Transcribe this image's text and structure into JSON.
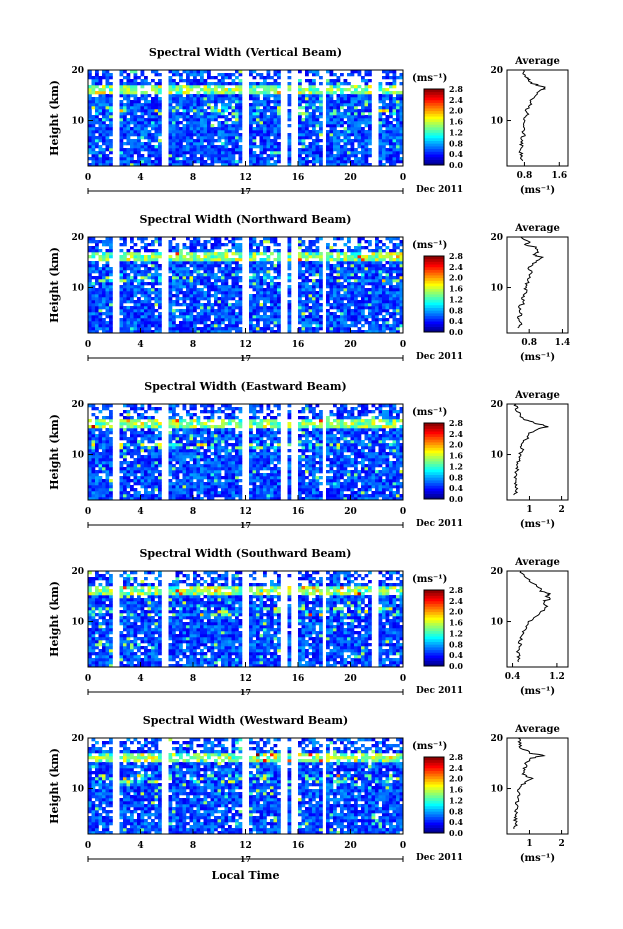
{
  "chart_data": [
    {
      "type": "heatmap",
      "title": "Spectral Width (Vertical Beam)",
      "ylabel": "Height (km)",
      "yticks": [
        "20",
        "10"
      ],
      "xticks": [
        "0",
        "4",
        "8",
        "12",
        "16",
        "20",
        "0"
      ],
      "day_label": "17",
      "date_label": "Dec 2011",
      "ylim": [
        1,
        20
      ],
      "xlim": [
        0,
        24
      ],
      "colorbar": {
        "unit": "(ms⁻¹)",
        "ticks": [
          "2.8",
          "2.4",
          "2.0",
          "1.6",
          "1.2",
          "0.8",
          "0.4",
          "0.0"
        ],
        "range": [
          0,
          2.8
        ]
      },
      "data_gaps_hours": [
        [
          2.0,
          2.5
        ],
        [
          5.6,
          6.2
        ],
        [
          11.8,
          12.3
        ],
        [
          14.7,
          15.1
        ],
        [
          15.4,
          16.0
        ],
        [
          17.9,
          18.2
        ],
        [
          21.6,
          22.0
        ]
      ],
      "average": {
        "title": "Average",
        "xticks": [
          "0.8",
          "1.6"
        ],
        "xlim": [
          0.4,
          1.8
        ],
        "unit": "(ms⁻¹)",
        "yticks": [
          "20",
          "10"
        ],
        "profile": [
          [
            2,
            0.72
          ],
          [
            3,
            0.75
          ],
          [
            4,
            0.7
          ],
          [
            5,
            0.74
          ],
          [
            6,
            0.72
          ],
          [
            7,
            0.78
          ],
          [
            8,
            0.76
          ],
          [
            9,
            0.82
          ],
          [
            10,
            0.78
          ],
          [
            11,
            0.86
          ],
          [
            12,
            0.84
          ],
          [
            13,
            0.92
          ],
          [
            14,
            0.96
          ],
          [
            15,
            1.05
          ],
          [
            16,
            1.2
          ],
          [
            16.5,
            1.28
          ],
          [
            17,
            1.1
          ],
          [
            17.5,
            0.95
          ],
          [
            18,
            0.9
          ],
          [
            18.5,
            0.85
          ],
          [
            19,
            0.8
          ],
          [
            20,
            0.78
          ]
        ]
      }
    },
    {
      "type": "heatmap",
      "title": "Spectral Width (Northward Beam)",
      "ylabel": "Height (km)",
      "yticks": [
        "20",
        "10"
      ],
      "xticks": [
        "0",
        "4",
        "8",
        "12",
        "16",
        "20",
        "0"
      ],
      "day_label": "17",
      "date_label": "Dec 2011",
      "ylim": [
        1,
        20
      ],
      "xlim": [
        0,
        24
      ],
      "colorbar": {
        "unit": "(ms⁻¹)",
        "ticks": [
          "2.8",
          "2.4",
          "2.0",
          "1.6",
          "1.2",
          "0.8",
          "0.4",
          "0.0"
        ],
        "range": [
          0,
          2.8
        ]
      },
      "data_gaps_hours": [
        [
          2.0,
          2.5
        ],
        [
          5.6,
          6.2
        ],
        [
          11.8,
          12.3
        ],
        [
          14.7,
          15.1
        ],
        [
          15.4,
          16.0
        ],
        [
          17.9,
          18.2
        ]
      ],
      "average": {
        "title": "Average",
        "xticks": [
          "0.8",
          "1.4"
        ],
        "xlim": [
          0.4,
          1.5
        ],
        "unit": "(ms⁻¹)",
        "yticks": [
          "20",
          "10"
        ],
        "profile": [
          [
            2,
            0.62
          ],
          [
            3,
            0.65
          ],
          [
            4,
            0.6
          ],
          [
            5,
            0.66
          ],
          [
            6,
            0.62
          ],
          [
            7,
            0.7
          ],
          [
            8,
            0.68
          ],
          [
            9,
            0.75
          ],
          [
            10,
            0.72
          ],
          [
            11,
            0.78
          ],
          [
            12,
            0.8
          ],
          [
            13,
            0.86
          ],
          [
            14,
            0.78
          ],
          [
            15,
            0.92
          ],
          [
            16,
            1.05
          ],
          [
            16.5,
            0.85
          ],
          [
            17,
            0.98
          ],
          [
            18,
            0.9
          ],
          [
            18.5,
            0.72
          ],
          [
            19,
            0.8
          ],
          [
            20,
            0.65
          ]
        ]
      }
    },
    {
      "type": "heatmap",
      "title": "Spectral Width (Eastward Beam)",
      "ylabel": "Height (km)",
      "yticks": [
        "20",
        "10"
      ],
      "xticks": [
        "0",
        "4",
        "8",
        "12",
        "16",
        "20",
        "0"
      ],
      "day_label": "17",
      "date_label": "Dec 2011",
      "ylim": [
        1,
        20
      ],
      "xlim": [
        0,
        24
      ],
      "colorbar": {
        "unit": "(ms⁻¹)",
        "ticks": [
          "2.8",
          "2.4",
          "2.0",
          "1.6",
          "1.2",
          "0.8",
          "0.4",
          "0.0"
        ],
        "range": [
          0,
          2.8
        ]
      },
      "data_gaps_hours": [
        [
          2.0,
          2.5
        ],
        [
          5.6,
          6.2
        ],
        [
          11.8,
          12.3
        ],
        [
          14.7,
          15.1
        ],
        [
          15.4,
          16.0
        ],
        [
          17.9,
          18.2
        ]
      ],
      "average": {
        "title": "Average",
        "xticks": [
          "1",
          "2"
        ],
        "xlim": [
          0.3,
          2.2
        ],
        "unit": "(ms⁻¹)",
        "yticks": [
          "20",
          "10"
        ],
        "profile": [
          [
            2,
            0.55
          ],
          [
            3,
            0.62
          ],
          [
            4,
            0.55
          ],
          [
            5,
            0.6
          ],
          [
            6,
            0.55
          ],
          [
            7,
            0.62
          ],
          [
            8,
            0.6
          ],
          [
            9,
            0.68
          ],
          [
            10,
            0.7
          ],
          [
            11,
            0.78
          ],
          [
            12,
            0.75
          ],
          [
            13,
            0.9
          ],
          [
            14,
            0.95
          ],
          [
            15,
            1.2
          ],
          [
            15.5,
            1.6
          ],
          [
            16,
            1.3
          ],
          [
            16.5,
            1.05
          ],
          [
            17,
            0.8
          ],
          [
            18,
            0.7
          ],
          [
            19,
            0.6
          ],
          [
            20,
            0.58
          ]
        ]
      }
    },
    {
      "type": "heatmap",
      "title": "Spectral Width (Southward Beam)",
      "ylabel": "Height (km)",
      "yticks": [
        "20",
        "10"
      ],
      "xticks": [
        "0",
        "4",
        "8",
        "12",
        "16",
        "20",
        "0"
      ],
      "day_label": "17",
      "date_label": "Dec 2011",
      "ylim": [
        1,
        20
      ],
      "xlim": [
        0,
        24
      ],
      "colorbar": {
        "unit": "(ms⁻¹)",
        "ticks": [
          "2.8",
          "2.4",
          "2.0",
          "1.6",
          "1.2",
          "0.8",
          "0.4",
          "0.0"
        ],
        "range": [
          0,
          2.8
        ]
      },
      "data_gaps_hours": [
        [
          2.0,
          2.5
        ],
        [
          5.6,
          6.2
        ],
        [
          11.8,
          12.3
        ],
        [
          14.7,
          15.1
        ],
        [
          15.4,
          16.0
        ],
        [
          17.9,
          18.2
        ],
        [
          21.6,
          22.0
        ]
      ],
      "average": {
        "title": "Average",
        "xticks": [
          "0.4",
          "1.2"
        ],
        "xlim": [
          0.3,
          1.4
        ],
        "unit": "(ms⁻¹)",
        "yticks": [
          "20",
          "10"
        ],
        "profile": [
          [
            2,
            0.48
          ],
          [
            3,
            0.52
          ],
          [
            4,
            0.5
          ],
          [
            5,
            0.55
          ],
          [
            6,
            0.52
          ],
          [
            7,
            0.58
          ],
          [
            8,
            0.6
          ],
          [
            9,
            0.66
          ],
          [
            10,
            0.7
          ],
          [
            11,
            0.8
          ],
          [
            12,
            0.92
          ],
          [
            13,
            1.02
          ],
          [
            14,
            0.95
          ],
          [
            14.5,
            1.1
          ],
          [
            15,
            1.0
          ],
          [
            15.5,
            1.08
          ],
          [
            16,
            0.92
          ],
          [
            17,
            0.85
          ],
          [
            18,
            0.7
          ],
          [
            19,
            0.62
          ],
          [
            20,
            0.55
          ]
        ]
      }
    },
    {
      "type": "heatmap",
      "title": "Spectral Width (Westward Beam)",
      "ylabel": "Height (km)",
      "yticks": [
        "20",
        "10"
      ],
      "xticks": [
        "0",
        "4",
        "8",
        "12",
        "16",
        "20",
        "0"
      ],
      "day_label": "17",
      "date_label": "Dec 2011",
      "ylim": [
        1,
        20
      ],
      "xlim": [
        0,
        24
      ],
      "colorbar": {
        "unit": "(ms⁻¹)",
        "ticks": [
          "2.8",
          "2.4",
          "2.0",
          "1.6",
          "1.2",
          "0.8",
          "0.4",
          "0.0"
        ],
        "range": [
          0,
          2.8
        ]
      },
      "data_gaps_hours": [
        [
          2.0,
          2.5
        ],
        [
          5.6,
          6.2
        ],
        [
          11.8,
          12.3
        ],
        [
          14.7,
          15.1
        ],
        [
          15.4,
          16.0
        ],
        [
          17.9,
          18.2
        ]
      ],
      "average": {
        "title": "Average",
        "xticks": [
          "1",
          "2"
        ],
        "xlim": [
          0.3,
          2.2
        ],
        "unit": "(ms⁻¹)",
        "yticks": [
          "20",
          "10"
        ],
        "profile": [
          [
            2,
            0.55
          ],
          [
            3,
            0.6
          ],
          [
            4,
            0.56
          ],
          [
            5,
            0.6
          ],
          [
            6,
            0.58
          ],
          [
            7,
            0.62
          ],
          [
            8,
            0.62
          ],
          [
            9,
            0.66
          ],
          [
            10,
            0.7
          ],
          [
            11,
            0.82
          ],
          [
            12,
            1.1
          ],
          [
            12.5,
            0.9
          ],
          [
            13,
            0.8
          ],
          [
            14,
            0.85
          ],
          [
            15,
            0.9
          ],
          [
            16,
            1.0
          ],
          [
            16.5,
            1.5
          ],
          [
            17,
            1.05
          ],
          [
            18,
            0.75
          ],
          [
            19,
            0.7
          ],
          [
            20,
            0.65
          ]
        ]
      }
    }
  ],
  "footer": {
    "xlabel": "Local Time"
  }
}
